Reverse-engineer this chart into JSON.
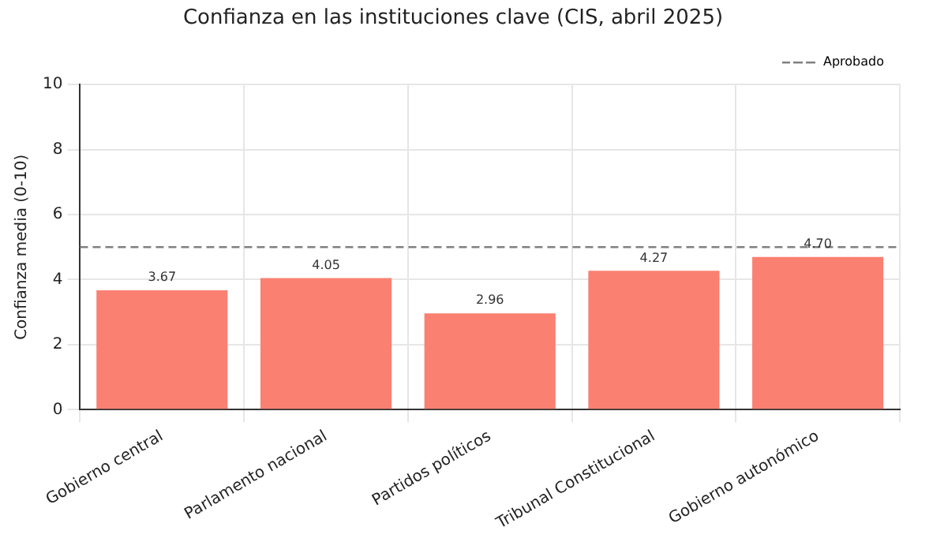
{
  "chart_data": {
    "type": "bar",
    "title": "Confianza en las instituciones clave (CIS, abril 2025)",
    "ylabel": "Confianza media (0-10)",
    "categories": [
      "Gobierno central",
      "Parlamento nacional",
      "Partidos políticos",
      "Tribunal Constitucional",
      "Gobierno autonómico"
    ],
    "values": [
      3.67,
      4.05,
      2.96,
      4.27,
      4.7
    ],
    "value_labels": [
      "3.67",
      "4.05",
      "2.96",
      "4.27",
      "4.70"
    ],
    "color": "#fa8072",
    "ylim": [
      0,
      10
    ],
    "yticks": [
      0,
      2,
      4,
      6,
      8,
      10
    ],
    "grid": true,
    "legend": "top right",
    "ref_lines": [
      {
        "axis": "y",
        "value": 5,
        "label": "Aprobado",
        "color": "#808080",
        "line_style": "dashed"
      }
    ]
  }
}
